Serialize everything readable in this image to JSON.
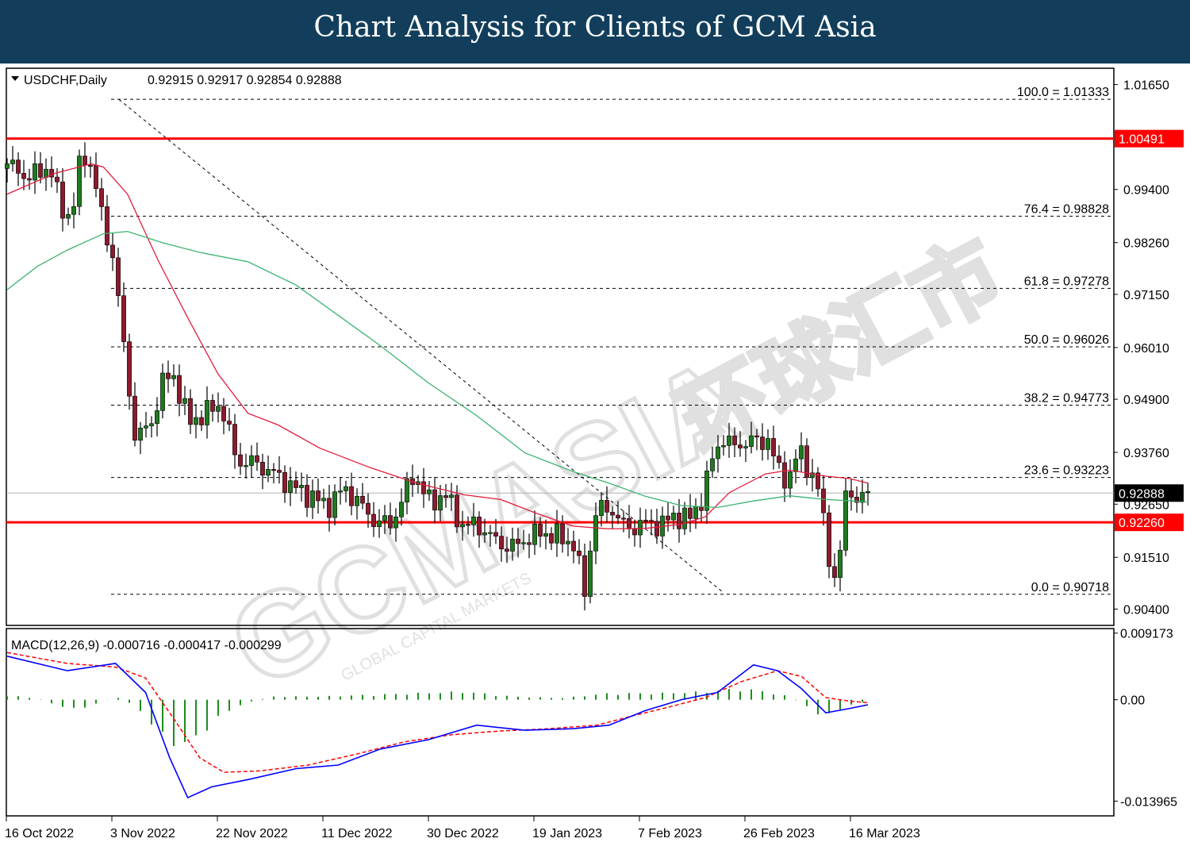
{
  "banner": {
    "title": "Chart Analysis for Clients of GCM Asia"
  },
  "watermark": {
    "text": "GCMASIA",
    "cjk": "环球汇市",
    "subtext": "GLOBAL CAPITAL MARKETS"
  },
  "colors": {
    "banner": "#123e5c",
    "bull": "#1f7a1f",
    "bear": "#8b1b2e",
    "sma_fast": "#e31b3c",
    "sma_slow": "#3cb371",
    "level_line": "#ff0000",
    "macd_line": "#0000ff",
    "signal_line": "#ff0000",
    "histogram": "#1e8c1e"
  },
  "chart_data": [
    {
      "type": "candlestick",
      "symbol_label": "USDCHF,Daily",
      "ohlc_label": "0.92915 0.92917 0.92854 0.92888",
      "ylim": [
        0.9005,
        1.02
      ],
      "yticks": [
        "1.01650",
        "0.99400",
        "0.98260",
        "0.97150",
        "0.96010",
        "0.94900",
        "0.93760",
        "0.92650",
        "0.91510",
        "0.90400"
      ],
      "xticks": [
        "16 Oct 2022",
        "3 Nov 2022",
        "22 Nov 2022",
        "11 Dec 2022",
        "30 Dec 2022",
        "19 Jan 2023",
        "7 Feb 2023",
        "26 Feb 2023",
        "16 Mar 2023"
      ],
      "fibonacci": [
        {
          "label": "100.0 = 1.01333",
          "value": 1.01333
        },
        {
          "label": "76.4 = 0.98828",
          "value": 0.98828
        },
        {
          "label": "61.8 = 0.97278",
          "value": 0.97278
        },
        {
          "label": "50.0 = 0.96026",
          "value": 0.96026
        },
        {
          "label": "38.2 = 0.94773",
          "value": 0.94773
        },
        {
          "label": "23.6 = 0.93223",
          "value": 0.93223
        },
        {
          "label": "0.0 = 0.90718",
          "value": 0.90718
        }
      ],
      "levels": [
        {
          "label": "1.00491",
          "value": 1.00491
        },
        {
          "label": "0.92260",
          "value": 0.9226
        }
      ],
      "current_price": {
        "label": "0.92888",
        "value": 0.92888
      },
      "trendline": {
        "from": {
          "date": "3 Nov 2022",
          "value": 1.0133
        },
        "to": {
          "date": "10 Feb 2023",
          "value": 0.9078
        }
      },
      "ma_lines": [
        {
          "color_key": "sma_fast",
          "points": [
            [
              0,
              0.993
            ],
            [
              8,
              0.9975
            ],
            [
              14,
              0.9995
            ],
            [
              16,
              0.9988
            ],
            [
              20,
              0.993
            ],
            [
              25,
              0.979
            ],
            [
              30,
              0.9665
            ],
            [
              35,
              0.9545
            ],
            [
              40,
              0.946
            ],
            [
              45,
              0.9435
            ],
            [
              52,
              0.9385
            ],
            [
              60,
              0.9345
            ],
            [
              68,
              0.931
            ],
            [
              76,
              0.9285
            ],
            [
              82,
              0.9275
            ],
            [
              88,
              0.9245
            ],
            [
              94,
              0.9218
            ],
            [
              100,
              0.9212
            ],
            [
              106,
              0.9213
            ],
            [
              112,
              0.9222
            ],
            [
              116,
              0.9238
            ],
            [
              120,
              0.929
            ],
            [
              126,
              0.933
            ],
            [
              130,
              0.9338
            ],
            [
              136,
              0.9325
            ],
            [
              140,
              0.932
            ],
            [
              143,
              0.931
            ]
          ]
        },
        {
          "color_key": "sma_slow",
          "points": [
            [
              0,
              0.9725
            ],
            [
              5,
              0.9775
            ],
            [
              10,
              0.981
            ],
            [
              16,
              0.9845
            ],
            [
              20,
              0.985
            ],
            [
              26,
              0.9825
            ],
            [
              32,
              0.9805
            ],
            [
              40,
              0.9785
            ],
            [
              48,
              0.9735
            ],
            [
              55,
              0.967
            ],
            [
              62,
              0.9605
            ],
            [
              70,
              0.9525
            ],
            [
              78,
              0.9455
            ],
            [
              86,
              0.9375
            ],
            [
              94,
              0.9335
            ],
            [
              100,
              0.931
            ],
            [
              106,
              0.9282
            ],
            [
              112,
              0.9262
            ],
            [
              118,
              0.9258
            ],
            [
              124,
              0.9272
            ],
            [
              130,
              0.9283
            ],
            [
              136,
              0.9275
            ],
            [
              143,
              0.927
            ]
          ]
        }
      ]
    },
    {
      "type": "macd",
      "label": "MACD(12,26,9) -0.000716 -0.000417 -0.000299",
      "ylim": [
        -0.016,
        0.0098
      ],
      "yticks": [
        "0.009173",
        "0.00",
        "-0.013965"
      ],
      "macd_line": [
        [
          0,
          0.006
        ],
        [
          10,
          0.004
        ],
        [
          18,
          0.005
        ],
        [
          23,
          0.001
        ],
        [
          27,
          -0.008
        ],
        [
          30,
          -0.0135
        ],
        [
          34,
          -0.012
        ],
        [
          40,
          -0.011
        ],
        [
          48,
          -0.0095
        ],
        [
          55,
          -0.009
        ],
        [
          62,
          -0.0068
        ],
        [
          70,
          -0.0055
        ],
        [
          78,
          -0.0035
        ],
        [
          86,
          -0.0042
        ],
        [
          94,
          -0.004
        ],
        [
          100,
          -0.0035
        ],
        [
          106,
          -0.0015
        ],
        [
          112,
          0.0
        ],
        [
          118,
          0.001
        ],
        [
          124,
          0.0048
        ],
        [
          128,
          0.004
        ],
        [
          132,
          0.0015
        ],
        [
          136,
          -0.0018
        ],
        [
          140,
          -0.0012
        ],
        [
          143,
          -0.0007
        ]
      ],
      "signal_line": [
        [
          0,
          0.0065
        ],
        [
          10,
          0.005
        ],
        [
          18,
          0.0045
        ],
        [
          23,
          0.003
        ],
        [
          28,
          -0.003
        ],
        [
          32,
          -0.008
        ],
        [
          36,
          -0.01
        ],
        [
          42,
          -0.0098
        ],
        [
          50,
          -0.009
        ],
        [
          58,
          -0.0075
        ],
        [
          66,
          -0.0058
        ],
        [
          74,
          -0.0048
        ],
        [
          82,
          -0.0043
        ],
        [
          90,
          -0.004
        ],
        [
          98,
          -0.0035
        ],
        [
          104,
          -0.0022
        ],
        [
          110,
          -0.001
        ],
        [
          116,
          0.0003
        ],
        [
          122,
          0.0025
        ],
        [
          128,
          0.004
        ],
        [
          132,
          0.0032
        ],
        [
          136,
          0.0003
        ],
        [
          140,
          -0.0002
        ],
        [
          143,
          -0.0004
        ]
      ],
      "histogram": [
        [
          0,
          0.0006
        ],
        [
          6,
          0.0
        ],
        [
          10,
          -0.0012
        ],
        [
          14,
          -0.0008
        ],
        [
          18,
          0.0004
        ],
        [
          22,
          -0.0012
        ],
        [
          26,
          -0.005
        ],
        [
          30,
          -0.0058
        ],
        [
          34,
          -0.003
        ],
        [
          38,
          -0.0008
        ],
        [
          44,
          0.0004
        ],
        [
          52,
          0.0004
        ],
        [
          60,
          0.0006
        ],
        [
          68,
          0.0008
        ],
        [
          76,
          0.001
        ],
        [
          84,
          0.0004
        ],
        [
          92,
          0.0002
        ],
        [
          100,
          0.0008
        ],
        [
          108,
          0.0008
        ],
        [
          116,
          0.001
        ],
        [
          122,
          0.0014
        ],
        [
          126,
          0.001
        ],
        [
          130,
          0.0004
        ],
        [
          134,
          -0.0014
        ],
        [
          136,
          -0.0022
        ],
        [
          140,
          -0.0006
        ],
        [
          143,
          -0.0003
        ]
      ]
    }
  ]
}
